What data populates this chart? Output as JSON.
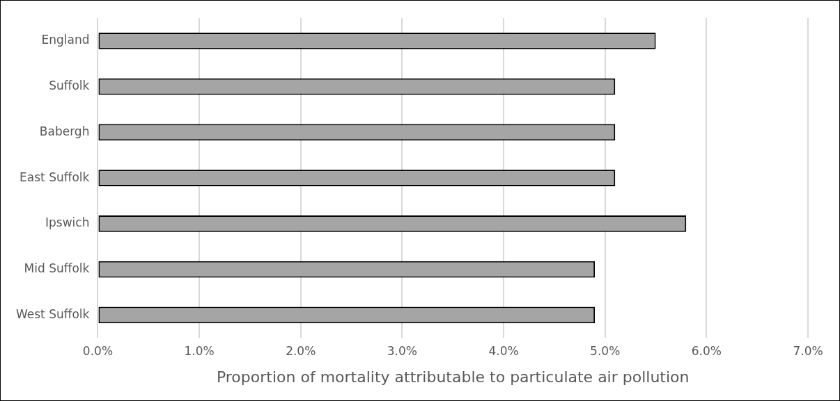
{
  "chart_data": {
    "type": "bar",
    "orientation": "horizontal",
    "xlabel": "Proportion of mortality attributable to particulate air pollution",
    "categories": [
      "England",
      "Suffolk",
      "Babergh",
      "East Suffolk",
      "Ipswich",
      "Mid Suffolk",
      "West Suffolk"
    ],
    "values": [
      5.5,
      5.1,
      5.1,
      5.1,
      5.8,
      4.9,
      4.9
    ],
    "color": "#a5a5a5",
    "xlim": [
      0,
      7
    ],
    "xticks": [
      {
        "value": 0,
        "label": "0.0%"
      },
      {
        "value": 1,
        "label": "1.0%"
      },
      {
        "value": 2,
        "label": "2.0%"
      },
      {
        "value": 3,
        "label": "3.0%"
      },
      {
        "value": 4,
        "label": "4.0%"
      },
      {
        "value": 5,
        "label": "5.0%"
      },
      {
        "value": 6,
        "label": "6.0%"
      },
      {
        "value": 7,
        "label": "7.0%"
      }
    ],
    "grid": "x"
  }
}
